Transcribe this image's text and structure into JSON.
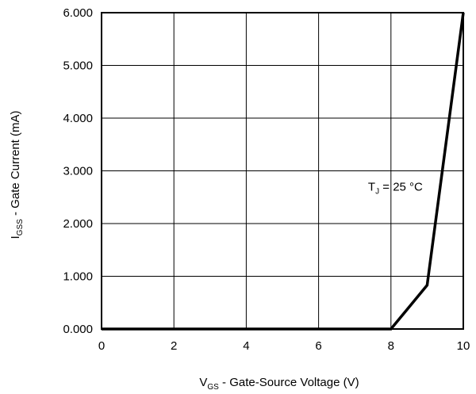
{
  "chart_data": {
    "type": "line",
    "title": "",
    "xlabel": {
      "main": "V",
      "sub": "GS",
      "rest": " - Gate-Source Voltage (V)"
    },
    "ylabel": {
      "main": "I",
      "sub": "GSS",
      "rest": " - Gate Current (mA)"
    },
    "xlim": [
      0,
      10
    ],
    "ylim": [
      0,
      6
    ],
    "x_ticks": [
      0,
      2,
      4,
      6,
      8,
      10
    ],
    "x_tick_labels": [
      "0",
      "2",
      "4",
      "6",
      "8",
      "10"
    ],
    "y_ticks": [
      0,
      1,
      2,
      3,
      4,
      5,
      6
    ],
    "y_tick_labels": [
      "0.000",
      "1.000",
      "2.000",
      "3.000",
      "4.000",
      "5.000",
      "6.000"
    ],
    "x_grid_lines": [
      2,
      4,
      6,
      8
    ],
    "y_grid_lines": [
      1,
      2,
      3,
      4,
      5
    ],
    "grid": true,
    "series": [
      {
        "x": [
          0,
          8.0,
          9.0,
          10.0
        ],
        "y": [
          0,
          0,
          0.83,
          6.0
        ]
      }
    ],
    "annotation": {
      "main": "T",
      "sub": "J",
      "rest": " = 25 °C",
      "x": 9.0,
      "y": 2.7
    }
  }
}
